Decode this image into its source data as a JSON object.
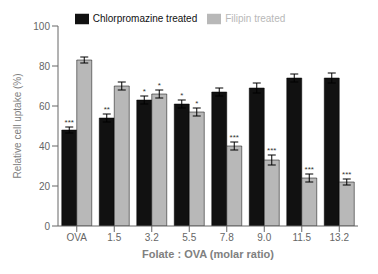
{
  "chart_data": {
    "type": "bar",
    "categories": [
      "OVA",
      "1.5",
      "3.2",
      "5.5",
      "7.8",
      "9.0",
      "11.5",
      "13.2"
    ],
    "series": [
      {
        "name": "Chlorpromazine treated",
        "color": "#111111",
        "values": [
          48,
          54,
          63,
          61,
          67,
          69,
          74,
          74
        ],
        "errors": [
          1.5,
          2,
          2,
          2,
          2,
          2.5,
          2,
          2.5
        ],
        "annotations": [
          "***",
          "**",
          "*",
          "*",
          null,
          null,
          null,
          null
        ]
      },
      {
        "name": "Filipin treated",
        "color": "#b8b8b8",
        "values": [
          83,
          70,
          66,
          57,
          40,
          33,
          24,
          22
        ],
        "errors": [
          1.5,
          2,
          2,
          2,
          2,
          2.5,
          2,
          1.5
        ],
        "annotations": [
          null,
          null,
          "*",
          "*",
          "***",
          "***",
          "***",
          "***"
        ]
      }
    ],
    "xlabel": "Folate : OVA (molar ratio)",
    "ylabel": "Relative cell uptake (%)",
    "ylim": [
      0,
      100
    ],
    "yticks": [
      0,
      20,
      40,
      60,
      80,
      100
    ]
  }
}
